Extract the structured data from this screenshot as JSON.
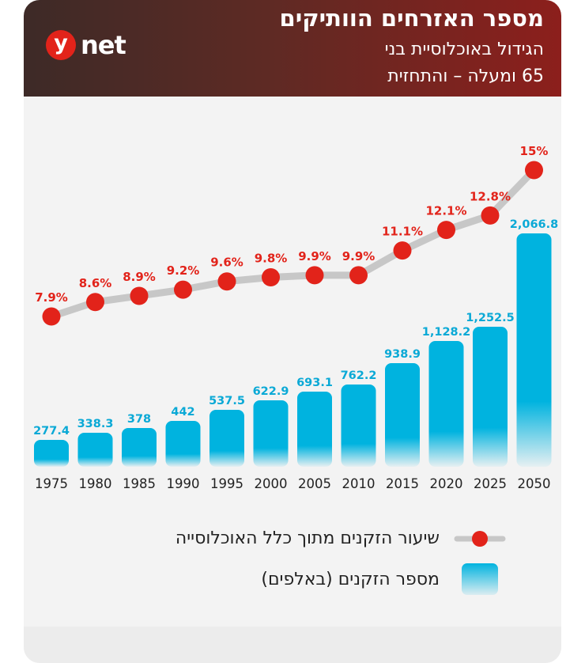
{
  "header": {
    "logo_mark": "y",
    "logo_text": "net",
    "title": "מספר האזרחים הוותיקים",
    "subtitle_line1": "הגידול באוכלוסיית בני",
    "subtitle_line2": "65 ומעלה – והתחזית"
  },
  "colors": {
    "header_dark": "#3d2a27",
    "header_red": "#8c1f1c",
    "bar_blue": "#00b3df",
    "dot_red": "#e2231a",
    "line_gray": "#c7c7c7",
    "label_blue": "#0aa9d6",
    "label_red": "#e2231a"
  },
  "legend": {
    "line_label": "שיעור הזקנים מתוך כלל האוכלוסייה",
    "bar_label": "מספר הזקנים (באלפים)"
  },
  "chart_data": {
    "type": "bar",
    "categories": [
      "1975",
      "1980",
      "1985",
      "1990",
      "1995",
      "2000",
      "2005",
      "2010",
      "2015",
      "2020",
      "2025",
      "2050"
    ],
    "series": [
      {
        "name": "מספר הזקנים (באלפים)",
        "type": "bar",
        "values": [
          277.4,
          338.3,
          378,
          442,
          537.5,
          622.9,
          693.1,
          762.2,
          938.9,
          1128.2,
          1252.5,
          2066.8
        ],
        "labels": [
          "277.4",
          "338.3",
          "378",
          "442",
          "537.5",
          "622.9",
          "693.1",
          "762.2",
          "938.9",
          "1,128.2",
          "1,252.5",
          "2,066.8"
        ]
      },
      {
        "name": "שיעור הזקנים מתוך כלל האוכלוסייה",
        "type": "line",
        "values": [
          7.9,
          8.6,
          8.9,
          9.2,
          9.6,
          9.8,
          9.9,
          9.9,
          11.1,
          12.1,
          12.8,
          15
        ],
        "labels": [
          "7.9%",
          "8.6%",
          "8.9%",
          "9.2%",
          "9.6%",
          "9.8%",
          "9.9%",
          "9.9%",
          "11.1%",
          "12.1%",
          "12.8%",
          "15%"
        ]
      }
    ],
    "legend_position": "bottom",
    "grid": false
  }
}
